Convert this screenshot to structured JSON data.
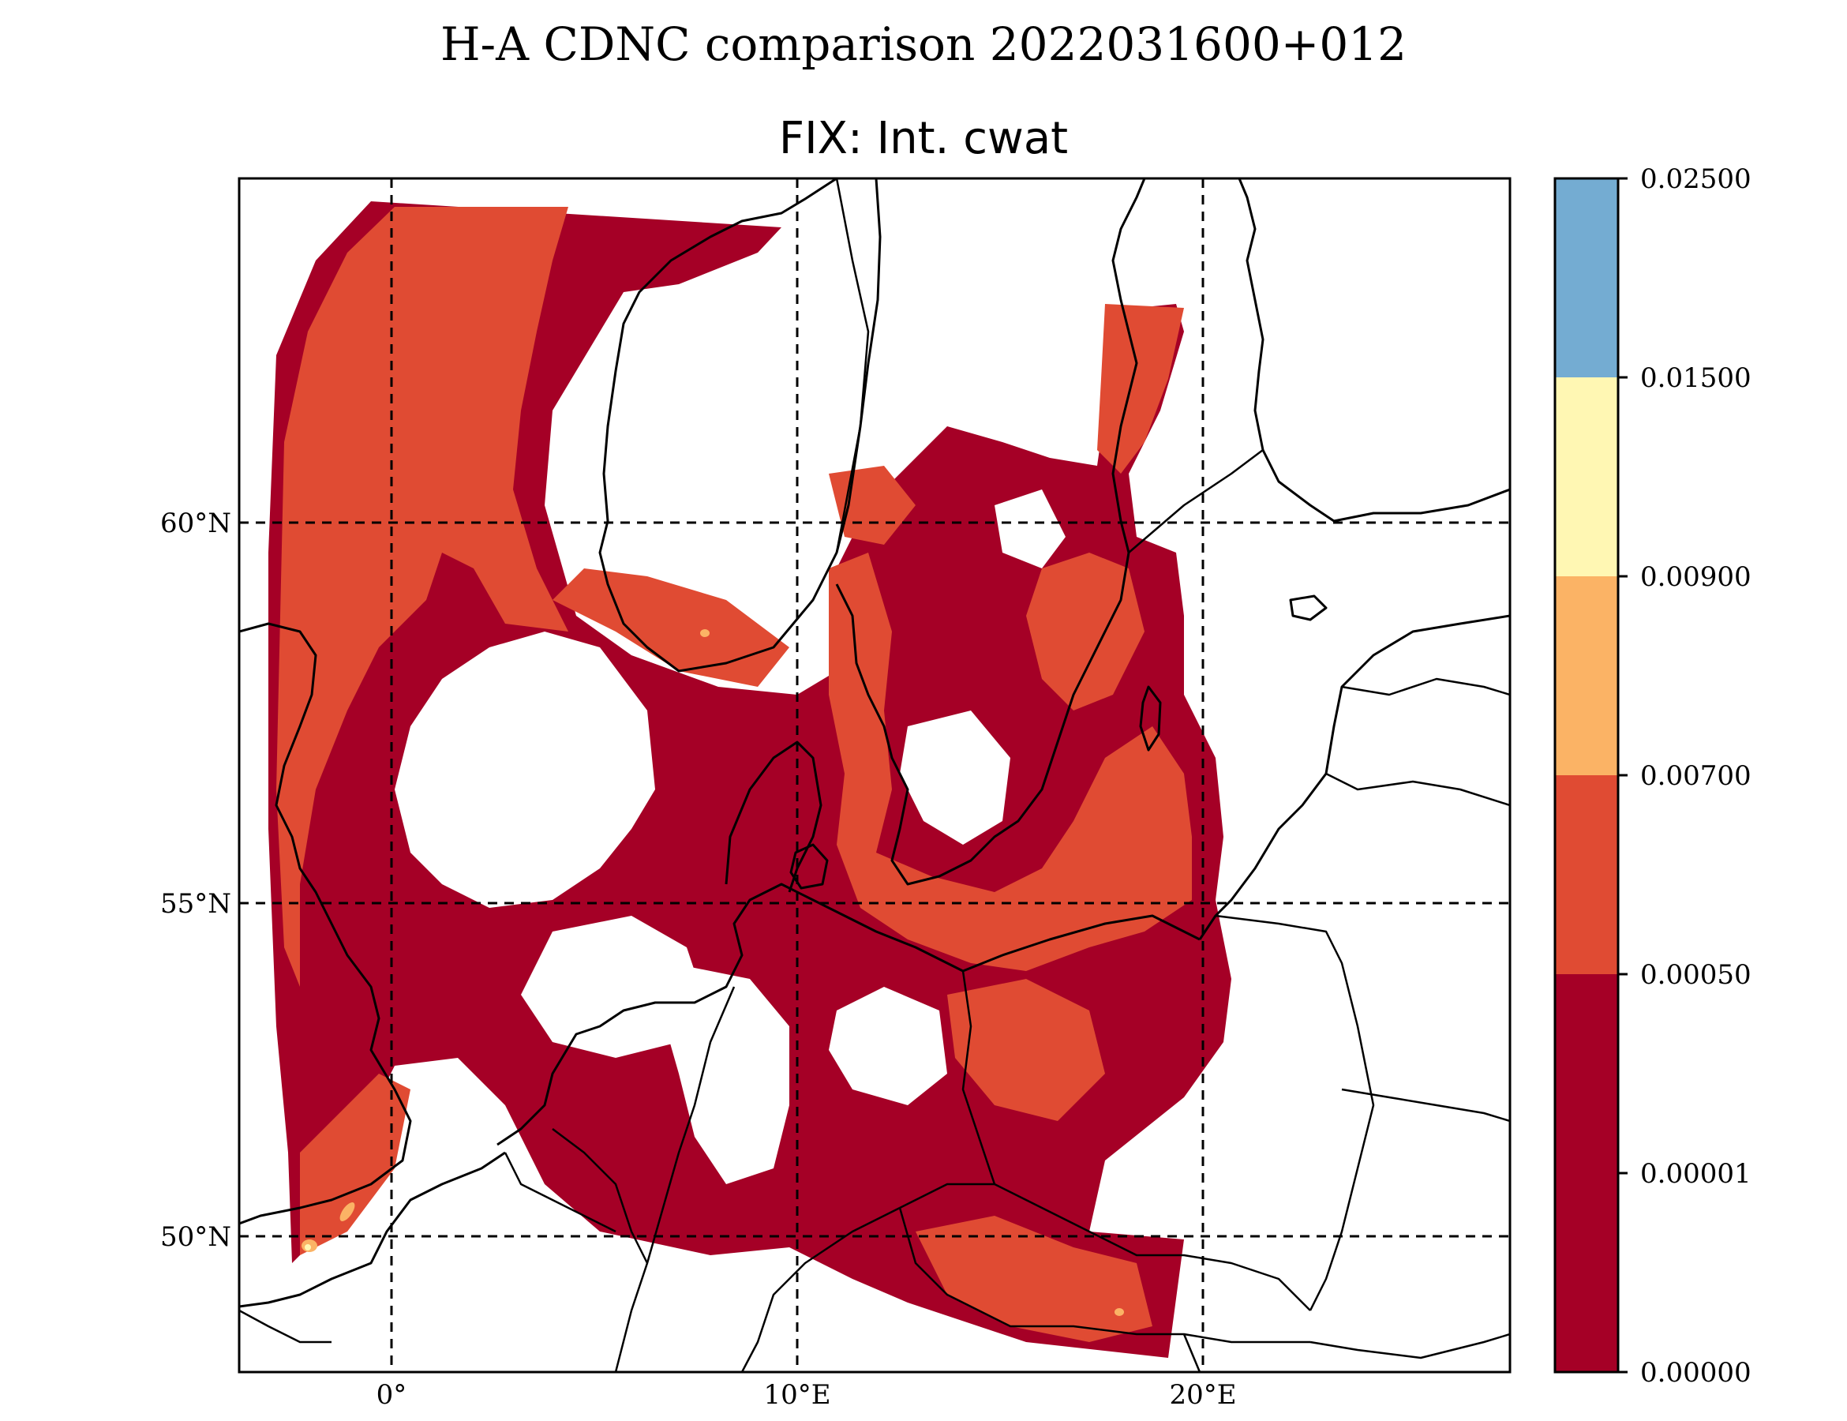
{
  "suptitle": "H-A CDNC comparison 2022031600+012",
  "title": "FIX: Int. cwat",
  "map": {
    "lon_range": [
      -3.8,
      27.5
    ],
    "lat_range": [
      48.2,
      64.0
    ],
    "graticule_lons": [
      0,
      10,
      20
    ],
    "graticule_lats": [
      50,
      55,
      60
    ],
    "lon_labels": [
      "0°",
      "10°E",
      "20°E"
    ],
    "lat_labels": [
      "50°N",
      "55°N",
      "60°N"
    ],
    "gridlines": "dashed black"
  },
  "colorbar": {
    "levels": [
      "0.00000",
      "0.00001",
      "0.00050",
      "0.00700",
      "0.00900",
      "0.01500",
      "0.02500"
    ],
    "colors": [
      "#a50026",
      "#e04b33",
      "#fbb365",
      "#fff7b3",
      "#74acd2"
    ]
  }
}
